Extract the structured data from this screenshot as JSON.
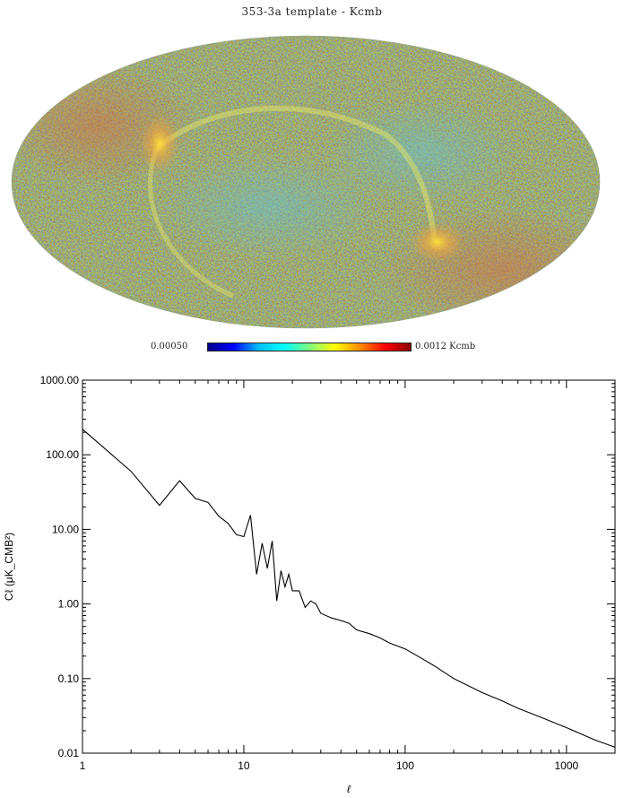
{
  "map": {
    "title": "353-3a template - Kcmb",
    "colorbar": {
      "min_label": "0.00050",
      "max_label": "0.0012 Kcmb",
      "colors": [
        "#00008b",
        "#0000ff",
        "#00bfff",
        "#00ffff",
        "#7fff7f",
        "#ffff00",
        "#ff8c00",
        "#ff0000",
        "#8b0000"
      ]
    },
    "projection": "mollweide"
  },
  "chart_data": {
    "type": "line",
    "title": "",
    "xlabel": "ℓ",
    "ylabel": "Cℓ (μK_CMB²)",
    "xscale": "log",
    "yscale": "log",
    "xlim": [
      1,
      2000
    ],
    "ylim": [
      0.01,
      1000
    ],
    "x_tick_labels": [
      "1",
      "10",
      "100",
      "1000"
    ],
    "y_tick_labels": [
      "0.01",
      "0.10",
      "1.00",
      "10.00",
      "100.00",
      "1000.00"
    ],
    "series": [
      {
        "x": [
          1,
          2,
          3,
          4,
          5,
          6,
          7,
          8,
          9,
          10,
          11,
          12,
          13,
          14,
          15,
          16,
          17,
          18,
          19,
          20,
          22,
          24,
          26,
          28,
          30,
          35,
          40,
          45,
          50,
          60,
          70,
          80,
          100,
          120,
          150,
          200,
          300,
          400,
          500,
          700,
          1000,
          1500,
          2000
        ],
        "y": [
          220,
          60,
          21,
          45,
          26,
          23,
          15,
          12,
          8.5,
          8,
          15.5,
          2.5,
          6.5,
          3,
          7,
          1.1,
          2.8,
          1.7,
          2.5,
          1.5,
          1.5,
          0.9,
          1.1,
          1.0,
          0.75,
          0.65,
          0.6,
          0.55,
          0.45,
          0.4,
          0.35,
          0.3,
          0.25,
          0.2,
          0.15,
          0.1,
          0.065,
          0.05,
          0.04,
          0.03,
          0.022,
          0.015,
          0.012
        ]
      }
    ]
  }
}
